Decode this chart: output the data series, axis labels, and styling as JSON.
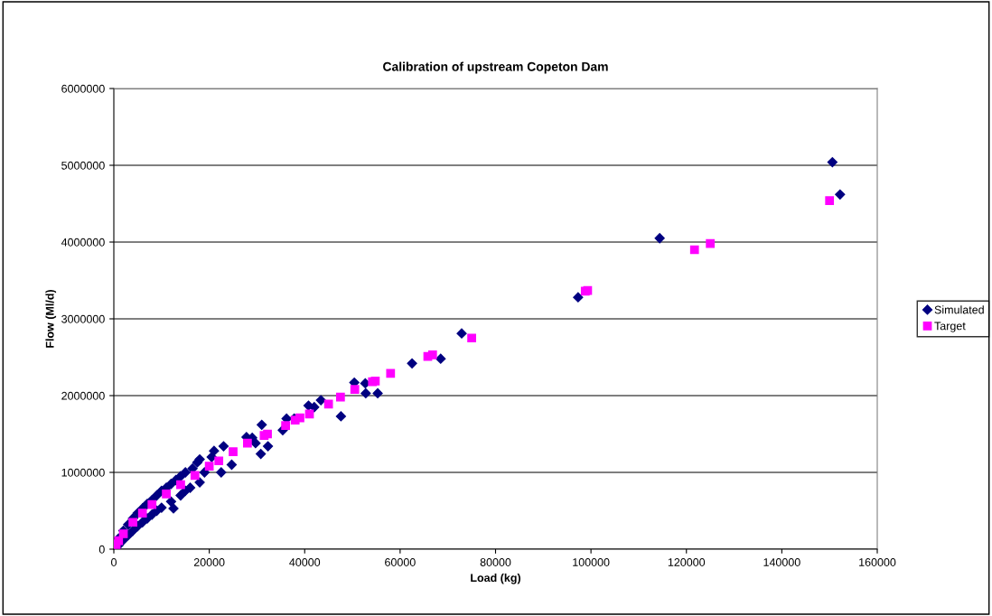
{
  "chart_data": {
    "type": "scatter",
    "title": "Calibration of upstream Copeton Dam",
    "xlabel": "Load (kg)",
    "ylabel": "Flow (Ml/d)",
    "xlim": [
      0,
      160000
    ],
    "xticks": [
      0,
      20000,
      40000,
      60000,
      80000,
      100000,
      120000,
      140000,
      160000
    ],
    "ylim": [
      0,
      6000000
    ],
    "yticks": [
      0,
      1000000,
      2000000,
      3000000,
      4000000,
      5000000,
      6000000
    ],
    "grid": "y",
    "legend": "right",
    "series": [
      {
        "name": "Simulated",
        "color": "#000080",
        "marker": "diamond",
        "x": [
          150600,
          152200,
          114400,
          97300,
          72900,
          68500,
          62500,
          55300,
          52800,
          52700,
          50400,
          47600,
          43400,
          42000,
          40800,
          37800,
          36200,
          35400,
          31000,
          30800,
          32300,
          29700,
          29000,
          27800,
          24700,
          22500,
          21000,
          23000,
          20500,
          18000,
          17500,
          16500,
          15000,
          14000,
          13000,
          12000,
          11000,
          10000,
          9000,
          8000,
          7000,
          6000,
          5000,
          4000,
          3000,
          2000,
          1000,
          18000,
          16000,
          15000,
          14000,
          12000,
          10000,
          9000,
          8000,
          7000,
          6000,
          5000,
          4000,
          3000,
          2000,
          1000,
          12500,
          19000
        ],
        "values": [
          5040000,
          4620000,
          4050000,
          3280000,
          2810000,
          2480000,
          2420000,
          2030000,
          2030000,
          2160000,
          2170000,
          1730000,
          1940000,
          1850000,
          1870000,
          1700000,
          1700000,
          1550000,
          1620000,
          1240000,
          1340000,
          1380000,
          1450000,
          1460000,
          1100000,
          1000000,
          1280000,
          1340000,
          1200000,
          1170000,
          1130000,
          1050000,
          1000000,
          950000,
          900000,
          850000,
          800000,
          760000,
          700000,
          640000,
          590000,
          530000,
          470000,
          400000,
          320000,
          240000,
          140000,
          870000,
          800000,
          760000,
          700000,
          620000,
          540000,
          500000,
          450000,
          400000,
          350000,
          300000,
          240000,
          180000,
          120000,
          50000,
          530000,
          1000000
        ]
      },
      {
        "name": "Target",
        "color": "#ff00ff",
        "marker": "square",
        "x": [
          150000,
          125000,
          121700,
          99300,
          98800,
          75000,
          66800,
          65800,
          58000,
          54800,
          54200,
          50500,
          47500,
          45000,
          41000,
          39000,
          38000,
          36000,
          32200,
          31500,
          28000,
          25000,
          22000,
          20000,
          17000,
          14000,
          11000,
          8000,
          6000,
          4000,
          2000,
          1000,
          500
        ],
        "values": [
          4540000,
          3980000,
          3900000,
          3370000,
          3360000,
          2750000,
          2530000,
          2510000,
          2290000,
          2190000,
          2180000,
          2080000,
          1980000,
          1890000,
          1760000,
          1710000,
          1680000,
          1610000,
          1500000,
          1480000,
          1380000,
          1270000,
          1150000,
          1080000,
          960000,
          840000,
          720000,
          580000,
          470000,
          350000,
          200000,
          110000,
          60000
        ]
      }
    ]
  }
}
